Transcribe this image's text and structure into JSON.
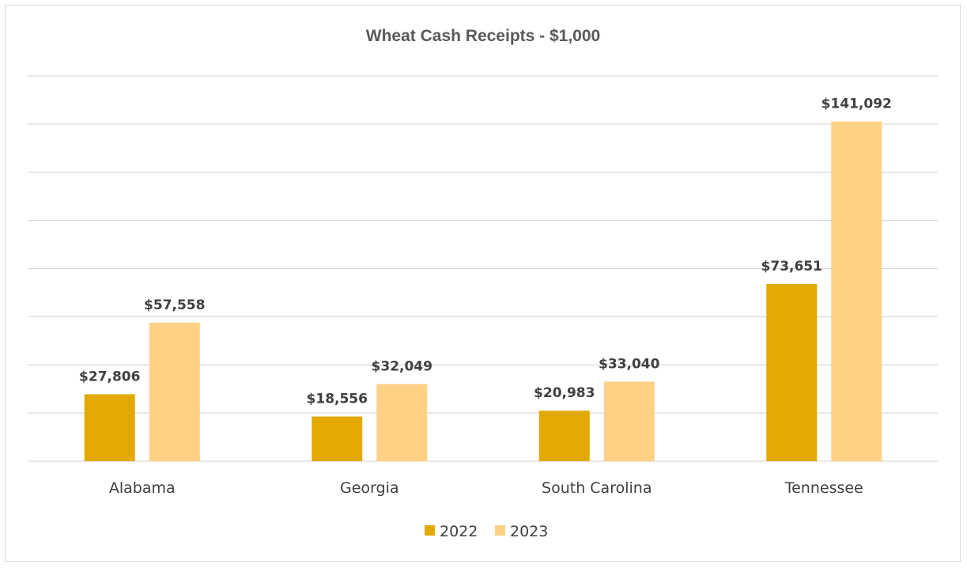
{
  "chart_data": {
    "type": "bar",
    "title": "Wheat Cash Receipts - $1,000",
    "xlabel": "",
    "ylabel": "",
    "categories": [
      "Alabama",
      "Georgia",
      "South Carolina",
      "Tennessee"
    ],
    "series": [
      {
        "name": "2022",
        "values": [
          27806,
          18556,
          20983,
          73651
        ],
        "labels": [
          "$27,806",
          "$18,556",
          "$20,983",
          "$73,651"
        ],
        "color": "#e2aa00"
      },
      {
        "name": "2023",
        "values": [
          57558,
          32049,
          33040,
          141092
        ],
        "labels": [
          "$57,558",
          "$32,049",
          "$33,040",
          "$141,092"
        ],
        "color": "#ffd185"
      }
    ],
    "ylim": [
      0,
      160000
    ],
    "grid": true,
    "legend_position": "bottom"
  }
}
